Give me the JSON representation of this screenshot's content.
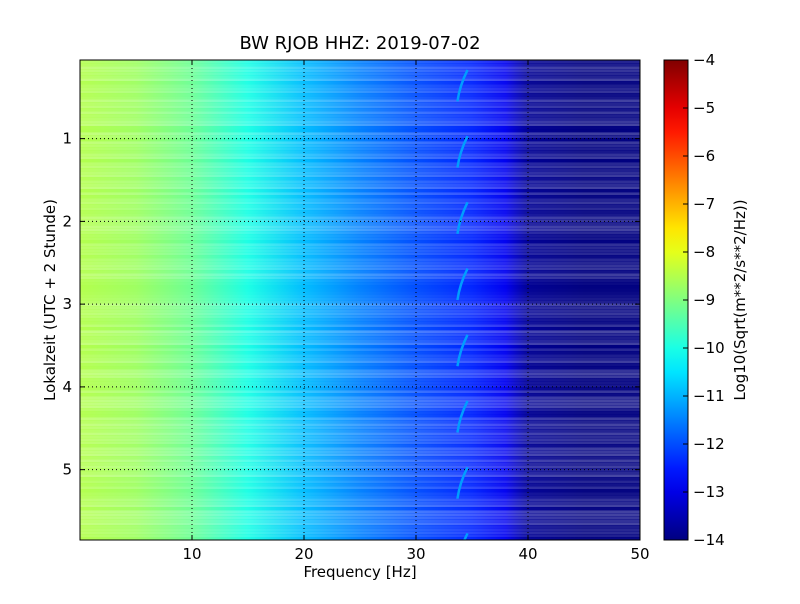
{
  "chart_data": {
    "type": "heatmap",
    "title": "BW RJOB HHZ: 2019-07-02",
    "xlabel": "Frequency [Hz]",
    "ylabel": "Lokalzeit (UTC + 2 Stunde)",
    "xlim": [
      0,
      50
    ],
    "ylim": [
      5.85,
      0.05
    ],
    "y_inverted": true,
    "x_ticks": [
      10,
      20,
      30,
      40,
      50
    ],
    "x_tick_labels": [
      "10",
      "20",
      "30",
      "40",
      "50"
    ],
    "y_ticks": [
      1,
      2,
      3,
      4,
      5
    ],
    "y_tick_labels": [
      "1",
      "2",
      "3",
      "4",
      "5"
    ],
    "grid": true,
    "colormap": "jet",
    "colorbar": {
      "label": "Log10(Sqrt(m**2/s**2/Hz))",
      "range": [
        -14,
        -4
      ],
      "ticks": [
        -4,
        -5,
        -6,
        -7,
        -8,
        -9,
        -10,
        -11,
        -12,
        -13,
        -14
      ],
      "tick_labels": [
        "−4",
        "−5",
        "−6",
        "−7",
        "−8",
        "−9",
        "−10",
        "−11",
        "−12",
        "−13",
        "−14"
      ]
    },
    "psd_profile_hz_vs_log10": [
      [
        0,
        -8.5
      ],
      [
        5,
        -8.7
      ],
      [
        10,
        -9.2
      ],
      [
        15,
        -10.0
      ],
      [
        20,
        -10.9
      ],
      [
        25,
        -11.5
      ],
      [
        30,
        -12.0
      ],
      [
        35,
        -12.4
      ],
      [
        38,
        -12.9
      ],
      [
        40,
        -13.8
      ],
      [
        45,
        -14.0
      ],
      [
        50,
        -14.0
      ]
    ],
    "line_feature_hz": 34
  }
}
